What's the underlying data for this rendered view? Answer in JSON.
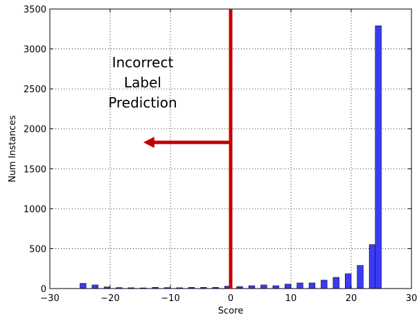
{
  "chart_data": {
    "type": "bar",
    "xlabel": "Score",
    "ylabel": "Num Instances",
    "xlim": [
      -30,
      30
    ],
    "ylim": [
      0,
      3500
    ],
    "xticks": [
      -30,
      -20,
      -10,
      0,
      10,
      20,
      30
    ],
    "xtick_labels": [
      "−30",
      "−20",
      "−10",
      "0",
      "10",
      "20",
      "30"
    ],
    "yticks": [
      0,
      500,
      1000,
      1500,
      2000,
      2500,
      3000,
      3500
    ],
    "ytick_labels": [
      "0",
      "500",
      "1000",
      "1500",
      "2000",
      "2500",
      "3000",
      "3500"
    ],
    "grid": true,
    "bar_color": "#3b3bf5",
    "bar_width": 1.0,
    "x": [
      -24.5,
      -22.5,
      -20.5,
      -18.5,
      -16.5,
      -14.5,
      -12.5,
      -10.5,
      -8.5,
      -6.5,
      -4.5,
      -2.5,
      -0.5,
      1.5,
      3.5,
      5.5,
      7.5,
      9.5,
      11.5,
      13.5,
      15.5,
      17.5,
      19.5,
      21.5,
      23.5,
      24.5
    ],
    "values": [
      65,
      45,
      20,
      12,
      10,
      8,
      15,
      12,
      10,
      15,
      15,
      15,
      30,
      25,
      35,
      45,
      35,
      55,
      70,
      70,
      105,
      140,
      185,
      290,
      550,
      3290
    ],
    "annotation": {
      "lines": [
        "Incorrect",
        "Label",
        "Prediction"
      ],
      "color": "#c00000",
      "threshold_x": 0,
      "arrow_from": [
        0,
        1830
      ],
      "arrow_to": [
        -14.5,
        1830
      ]
    }
  }
}
